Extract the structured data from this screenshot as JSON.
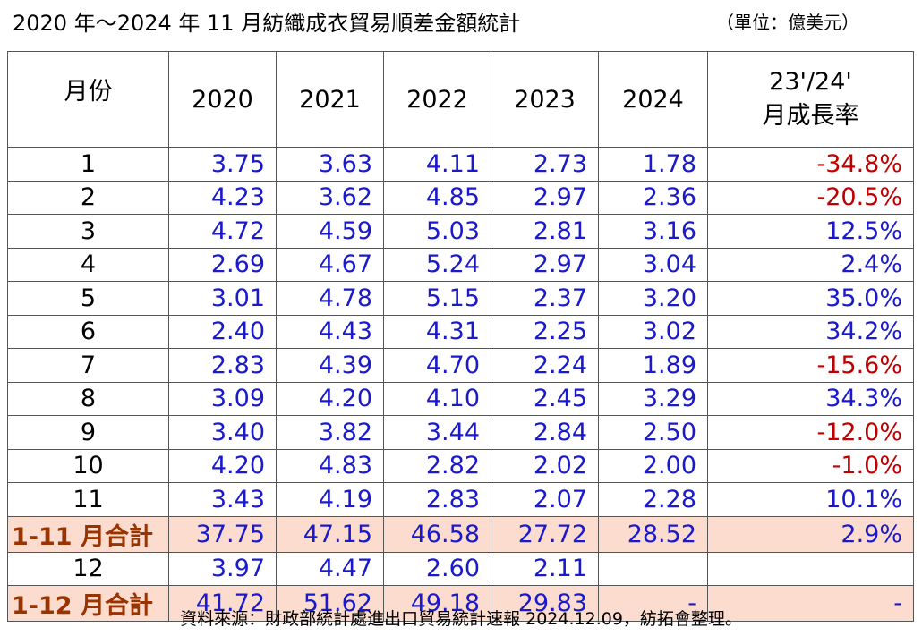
{
  "title": "2020 年～2024 年 11 月紡織成衣貿易順差金額統計",
  "unit": "（單位：億美元）",
  "table": {
    "header": [
      "月份",
      "2020",
      "2021",
      "2022",
      "2023",
      "2024"
    ],
    "growth_header": [
      "23'/24'",
      "月成長率"
    ],
    "rows": [
      {
        "label": "1",
        "cells": [
          "3.75",
          "3.63",
          "4.11",
          "2.73",
          "1.78",
          "-34.8%"
        ]
      },
      {
        "label": "2",
        "cells": [
          "4.23",
          "3.62",
          "4.85",
          "2.97",
          "2.36",
          "-20.5%"
        ]
      },
      {
        "label": "3",
        "cells": [
          "4.72",
          "4.59",
          "5.03",
          "2.81",
          "3.16",
          "12.5%"
        ]
      },
      {
        "label": "4",
        "cells": [
          "2.69",
          "4.67",
          "5.24",
          "2.97",
          "3.04",
          "2.4%"
        ]
      },
      {
        "label": "5",
        "cells": [
          "3.01",
          "4.78",
          "5.15",
          "2.37",
          "3.20",
          "35.0%"
        ]
      },
      {
        "label": "6",
        "cells": [
          "2.40",
          "4.43",
          "4.31",
          "2.25",
          "3.02",
          "34.2%"
        ]
      },
      {
        "label": "7",
        "cells": [
          "2.83",
          "4.39",
          "4.70",
          "2.24",
          "1.89",
          "-15.6%"
        ]
      },
      {
        "label": "8",
        "cells": [
          "3.09",
          "4.20",
          "4.10",
          "2.45",
          "3.29",
          "34.3%"
        ]
      },
      {
        "label": "9",
        "cells": [
          "3.40",
          "3.82",
          "3.44",
          "2.84",
          "2.50",
          "-12.0%"
        ]
      },
      {
        "label": "10",
        "cells": [
          "4.20",
          "4.83",
          "2.82",
          "2.02",
          "2.00",
          "-1.0%"
        ]
      },
      {
        "label": "11",
        "cells": [
          "3.43",
          "4.19",
          "2.83",
          "2.07",
          "2.28",
          "10.1%"
        ]
      },
      {
        "label": "1-11 月合計",
        "highlight": true,
        "cells": [
          "37.75",
          "47.15",
          "46.58",
          "27.72",
          "28.52",
          "2.9%"
        ]
      },
      {
        "label": "12",
        "cells": [
          "3.97",
          "4.47",
          "2.60",
          "2.11",
          null,
          null
        ]
      },
      {
        "label": "1-12 月合計",
        "highlight": true,
        "cells": [
          "41.72",
          "51.62",
          "49.18",
          "29.83",
          "-",
          "-"
        ]
      }
    ]
  },
  "source": "資料來源：財政部統計處進出口貿易統計速報 2024.12.09，紡拓會整理。"
}
